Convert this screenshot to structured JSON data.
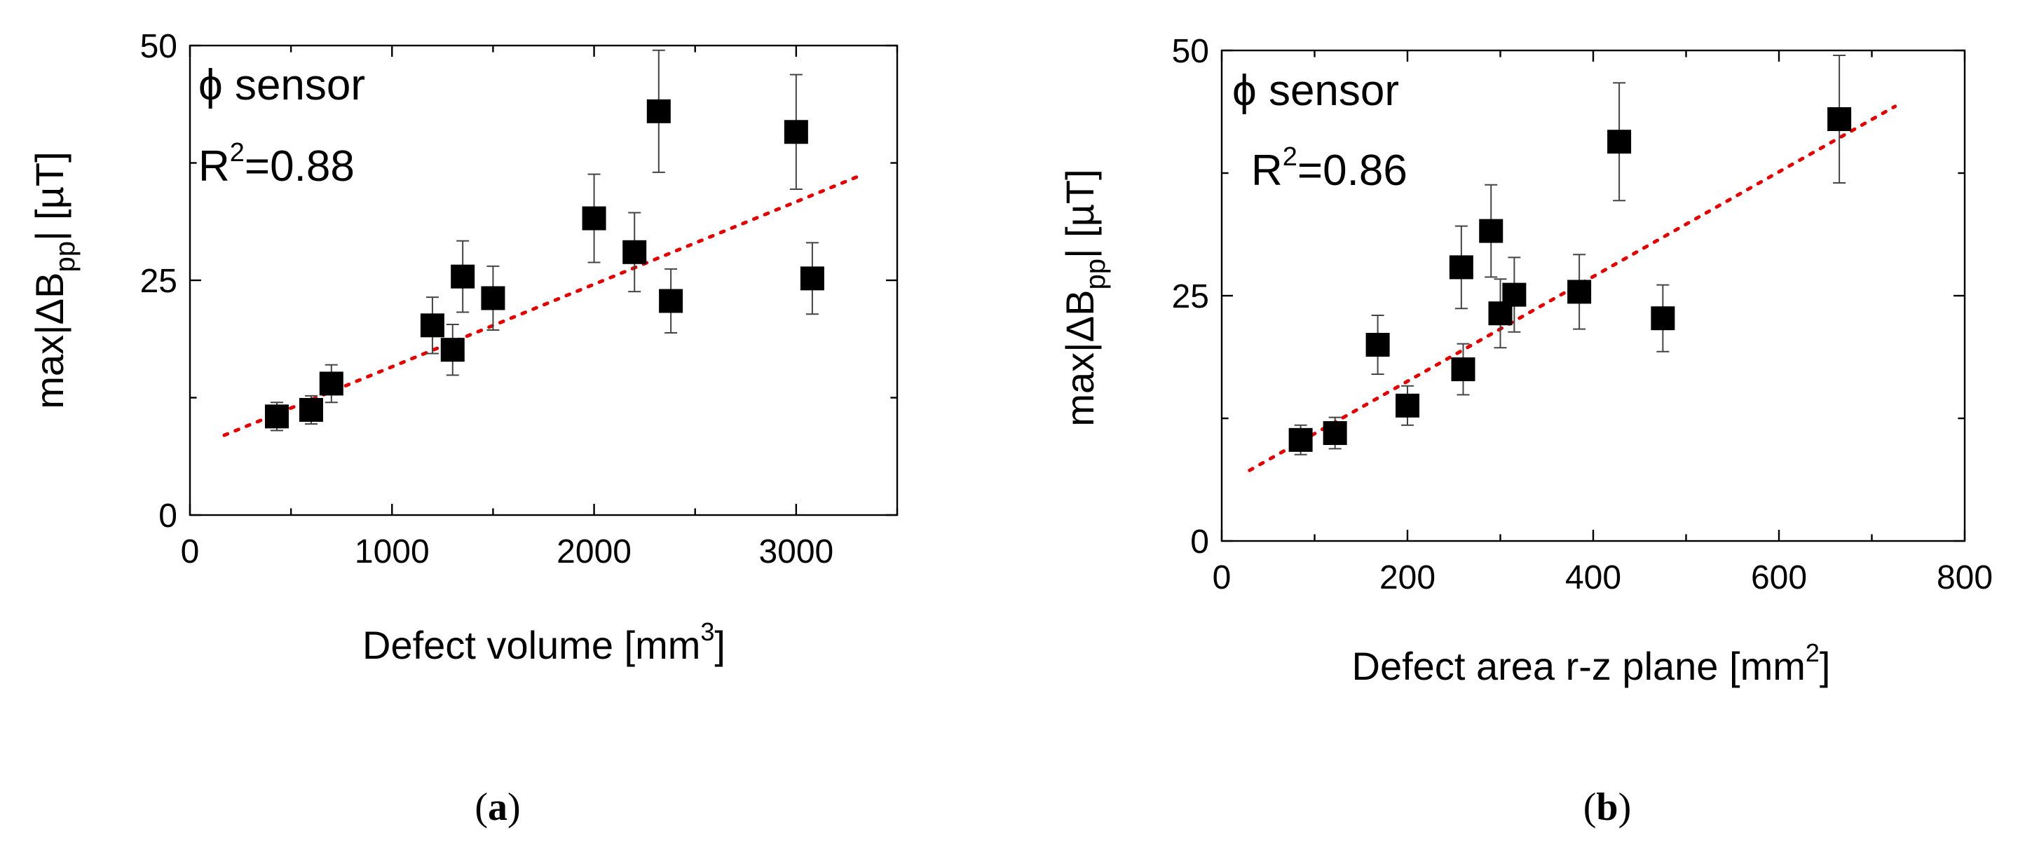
{
  "chart_data": [
    {
      "type": "scatter",
      "panel_label": "a",
      "annotation_sensor": "ϕ sensor",
      "annotation_r2_base": "R",
      "annotation_r2_sup": "2",
      "annotation_r2_value": "=0.88",
      "xlabel_text": "Defect volume [mm",
      "xlabel_sup": "3",
      "xlabel_end": "]",
      "ylabel_pre": "max|ΔB",
      "ylabel_sub": "pp",
      "ylabel_post": "| [µT]",
      "xlim": [
        0,
        3500
      ],
      "ylim": [
        0,
        50
      ],
      "xticks": [
        0,
        1000,
        2000,
        3000
      ],
      "yticks": [
        0,
        25,
        50
      ],
      "points": [
        {
          "x": 430,
          "y": 10.5,
          "err": 1.5
        },
        {
          "x": 600,
          "y": 11.2,
          "err": 1.5
        },
        {
          "x": 700,
          "y": 14.0,
          "err": 2.0
        },
        {
          "x": 1200,
          "y": 20.2,
          "err": 3.0
        },
        {
          "x": 1300,
          "y": 17.6,
          "err": 2.7
        },
        {
          "x": 1350,
          "y": 25.4,
          "err": 3.8
        },
        {
          "x": 1500,
          "y": 23.1,
          "err": 3.4
        },
        {
          "x": 2000,
          "y": 31.6,
          "err": 4.7
        },
        {
          "x": 2200,
          "y": 28.0,
          "err": 4.2
        },
        {
          "x": 2320,
          "y": 43.0,
          "err": 6.5
        },
        {
          "x": 2380,
          "y": 22.8,
          "err": 3.4
        },
        {
          "x": 3000,
          "y": 40.8,
          "err": 6.1
        },
        {
          "x": 3080,
          "y": 25.2,
          "err": 3.8
        }
      ],
      "fit_line": {
        "x": [
          170,
          3300
        ],
        "y": [
          8.5,
          36.0
        ]
      }
    },
    {
      "type": "scatter",
      "panel_label": "b",
      "annotation_sensor": "ϕ sensor",
      "annotation_r2_base": "R",
      "annotation_r2_sup": "2",
      "annotation_r2_value": "=0.86",
      "xlabel_text": "Defect area r-z plane [mm",
      "xlabel_sup": "2",
      "xlabel_end": "]",
      "ylabel_pre": "max|ΔB",
      "ylabel_sub": "pp",
      "ylabel_post": "| [µT]",
      "xlim": [
        0,
        800
      ],
      "ylim": [
        0,
        50
      ],
      "xticks": [
        0,
        200,
        400,
        600,
        800
      ],
      "yticks": [
        0,
        25,
        50
      ],
      "points": [
        {
          "x": 85,
          "y": 10.3,
          "err": 1.5
        },
        {
          "x": 122,
          "y": 11.0,
          "err": 1.6
        },
        {
          "x": 168,
          "y": 20.0,
          "err": 3.0
        },
        {
          "x": 200,
          "y": 13.8,
          "err": 2.0
        },
        {
          "x": 258,
          "y": 27.9,
          "err": 4.2
        },
        {
          "x": 260,
          "y": 17.5,
          "err": 2.6
        },
        {
          "x": 290,
          "y": 31.6,
          "err": 4.7
        },
        {
          "x": 300,
          "y": 23.2,
          "err": 3.5
        },
        {
          "x": 315,
          "y": 25.1,
          "err": 3.8
        },
        {
          "x": 385,
          "y": 25.4,
          "err": 3.8
        },
        {
          "x": 428,
          "y": 40.7,
          "err": 6.0
        },
        {
          "x": 475,
          "y": 22.7,
          "err": 3.4
        },
        {
          "x": 665,
          "y": 43.0,
          "err": 6.5
        }
      ],
      "fit_line": {
        "x": [
          30,
          725
        ],
        "y": [
          7.2,
          44.3
        ]
      }
    }
  ]
}
